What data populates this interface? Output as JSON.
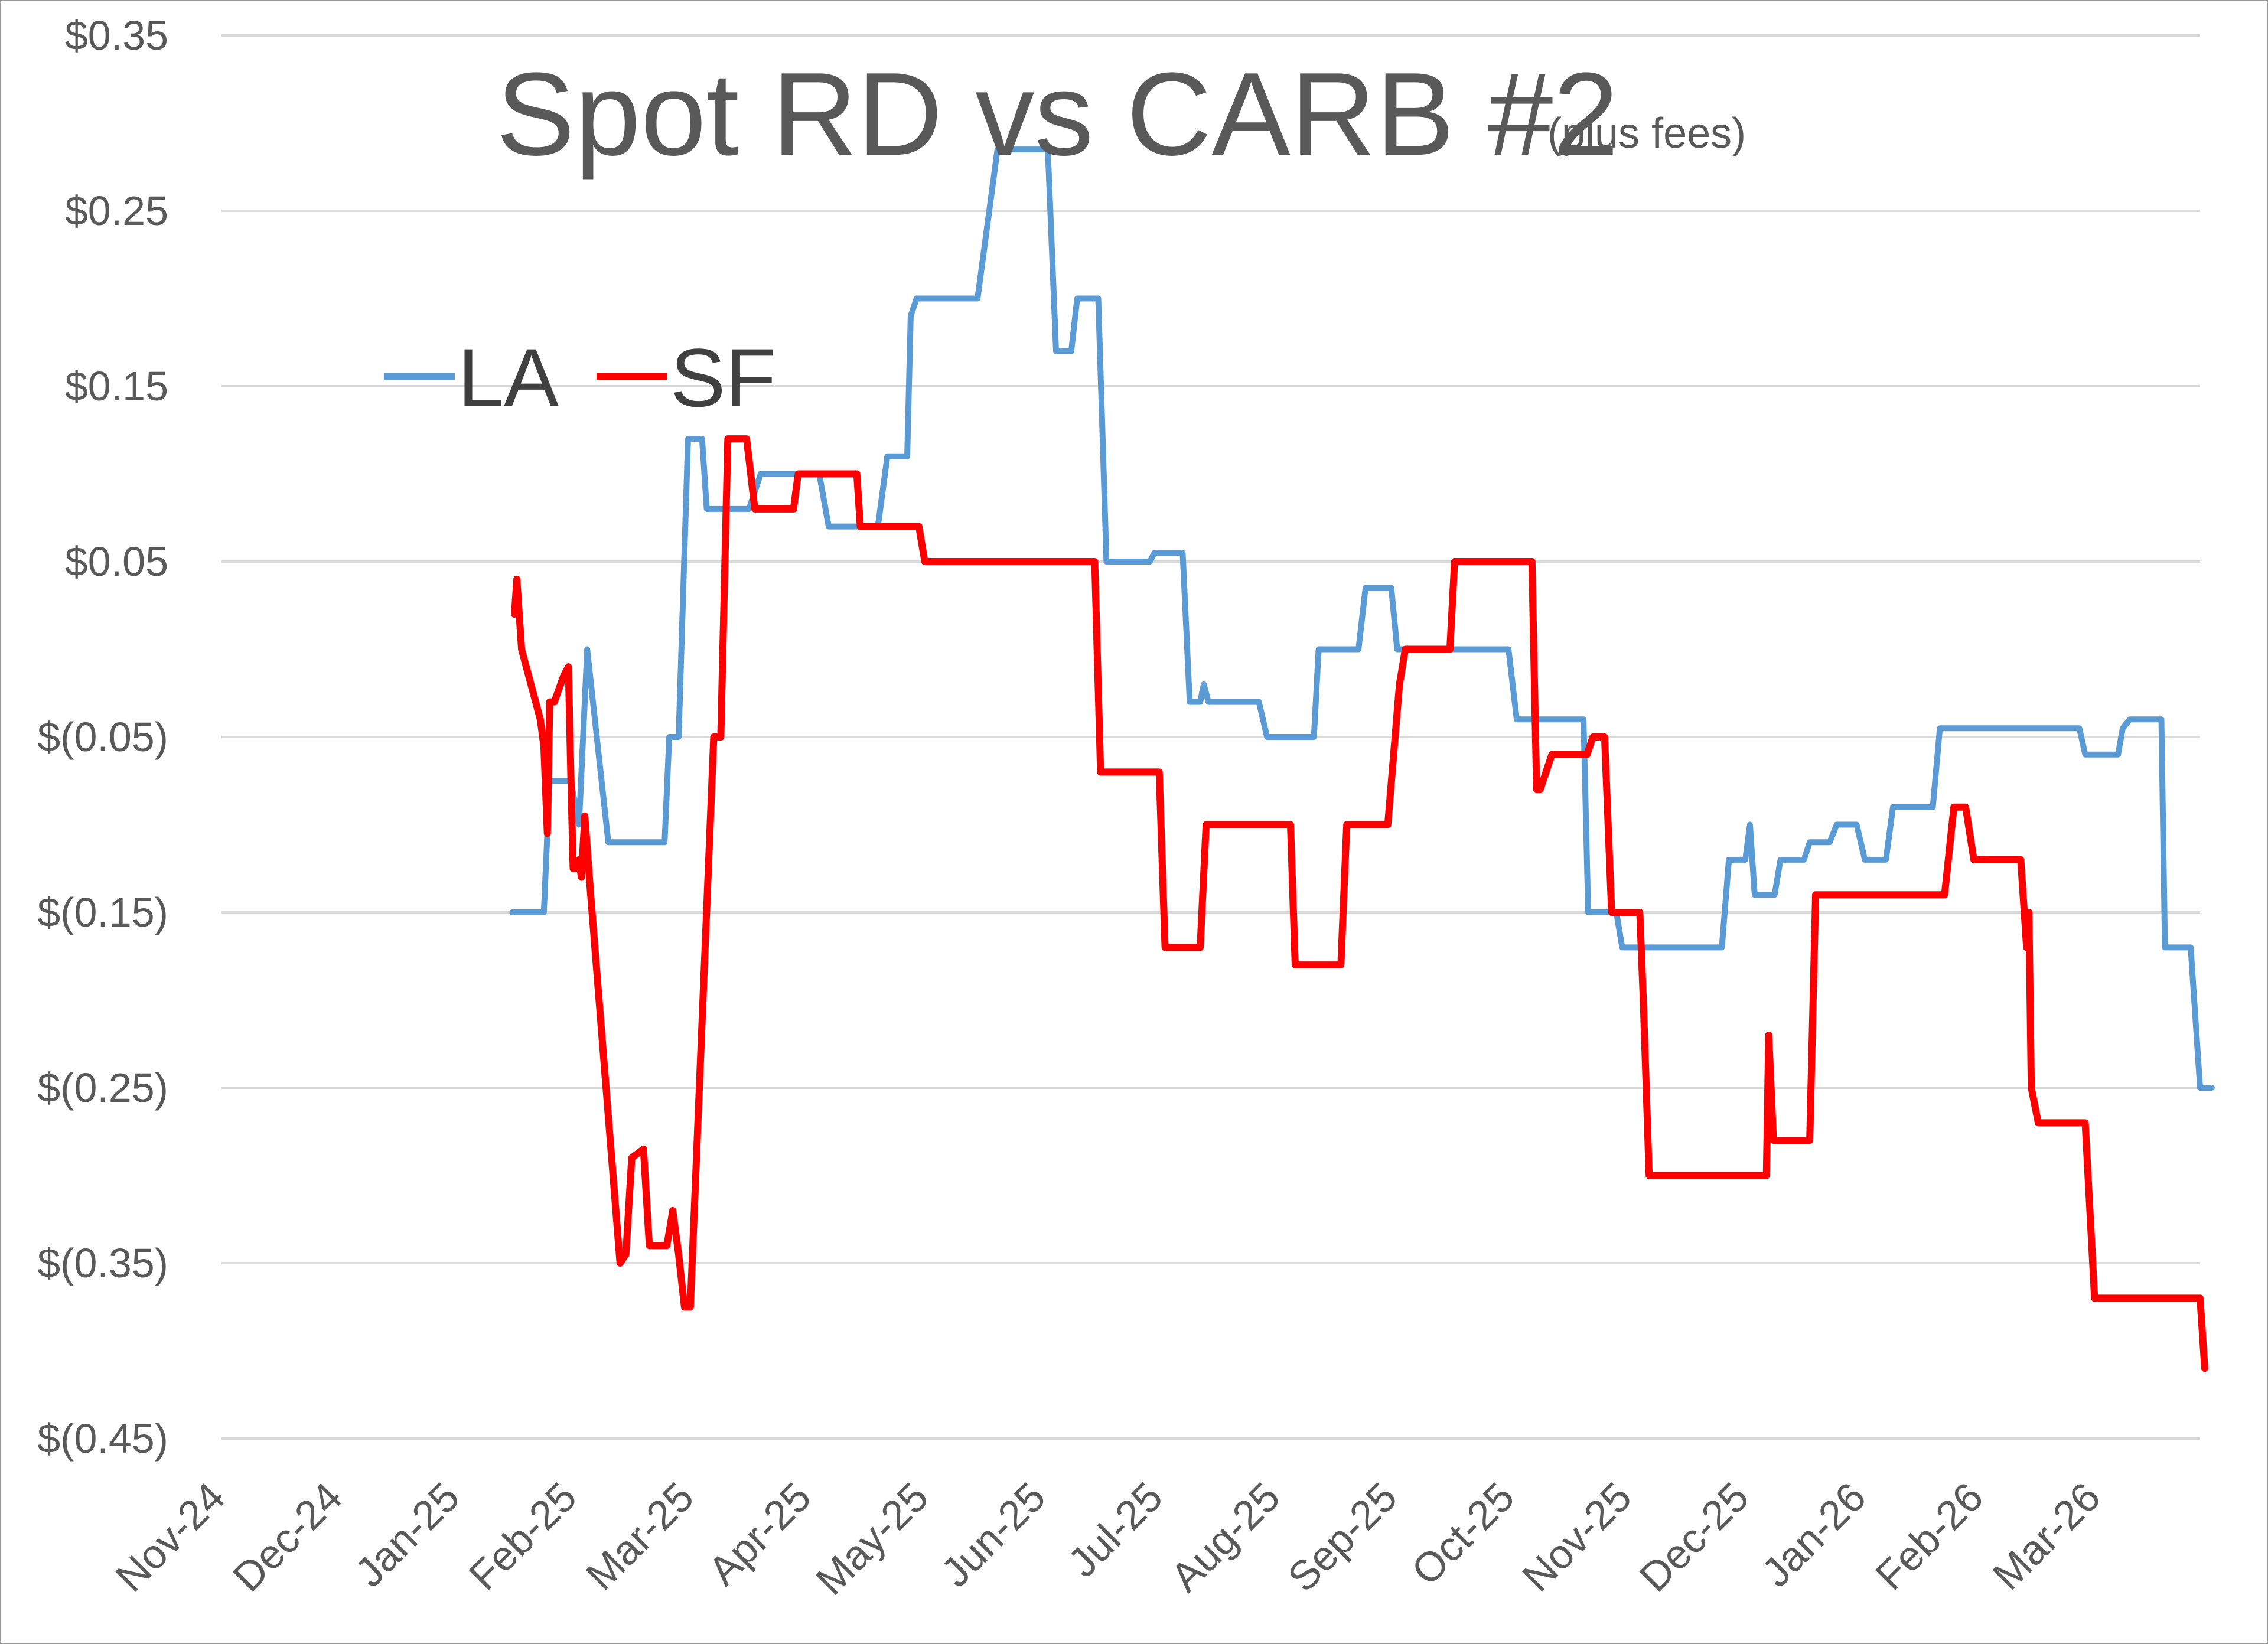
{
  "chart_data": {
    "type": "line",
    "title": "Spot RD vs CARB #2",
    "subtitle": "(plus fees)",
    "xlabel": "",
    "ylabel": "",
    "y_tick_labels": [
      "$0.35",
      "$0.25",
      "$0.15",
      "$0.05",
      "$(0.05)",
      "$(0.15)",
      "$(0.25)",
      "$(0.35)",
      "$(0.45)"
    ],
    "y_ticks": [
      0.35,
      0.25,
      0.15,
      0.05,
      -0.05,
      -0.15,
      -0.25,
      -0.35,
      -0.45
    ],
    "ylim": [
      -0.45,
      0.35
    ],
    "x_tick_labels": [
      "Nov-24",
      "Dec-24",
      "Jan-25",
      "Feb-25",
      "Mar-25",
      "Apr-25",
      "May-25",
      "Jun-25",
      "Jul-25",
      "Aug-25",
      "Sep-25",
      "Oct-25",
      "Nov-25",
      "Dec-25",
      "Jan-26",
      "Feb-26",
      "Mar-26"
    ],
    "x_ticks": [
      0,
      1,
      2,
      3,
      4,
      5,
      6,
      7,
      8,
      9,
      10,
      11,
      12,
      13,
      14,
      15,
      16
    ],
    "x_unit": "months since Nov-24",
    "xlim": [
      0,
      16.88
    ],
    "grid": true,
    "legend_position": "upper-left",
    "series": [
      {
        "name": "LA",
        "color": "#5b9bd5",
        "points": [
          [
            2.48,
            -0.15
          ],
          [
            2.75,
            -0.15
          ],
          [
            2.8,
            -0.075
          ],
          [
            2.98,
            -0.075
          ],
          [
            3.05,
            -0.1
          ],
          [
            3.12,
            0.0
          ],
          [
            3.3,
            -0.11
          ],
          [
            3.78,
            -0.11
          ],
          [
            3.82,
            -0.05
          ],
          [
            3.9,
            -0.05
          ],
          [
            3.98,
            0.12
          ],
          [
            4.1,
            0.12
          ],
          [
            4.14,
            0.08
          ],
          [
            4.5,
            0.08
          ],
          [
            4.6,
            0.1
          ],
          [
            5.1,
            0.1
          ],
          [
            5.18,
            0.07
          ],
          [
            5.32,
            0.07
          ],
          [
            5.42,
            0.07
          ],
          [
            5.6,
            0.07
          ],
          [
            5.68,
            0.11
          ],
          [
            5.85,
            0.11
          ],
          [
            5.88,
            0.19
          ],
          [
            5.93,
            0.2
          ],
          [
            6.45,
            0.2
          ],
          [
            6.62,
            0.285
          ],
          [
            7.05,
            0.285
          ],
          [
            7.12,
            0.17
          ],
          [
            7.25,
            0.17
          ],
          [
            7.3,
            0.2
          ],
          [
            7.48,
            0.2
          ],
          [
            7.55,
            0.05
          ],
          [
            7.92,
            0.05
          ],
          [
            7.96,
            0.055
          ],
          [
            8.2,
            0.055
          ],
          [
            8.26,
            -0.03
          ],
          [
            8.35,
            -0.03
          ],
          [
            8.38,
            -0.02
          ],
          [
            8.42,
            -0.03
          ],
          [
            8.85,
            -0.03
          ],
          [
            8.92,
            -0.05
          ],
          [
            9.32,
            -0.05
          ],
          [
            9.36,
            0.0
          ],
          [
            9.7,
            0.0
          ],
          [
            9.76,
            0.035
          ],
          [
            9.98,
            0.035
          ],
          [
            10.03,
            0.0
          ],
          [
            10.98,
            0.0
          ],
          [
            11.05,
            -0.04
          ],
          [
            11.62,
            -0.04
          ],
          [
            11.66,
            -0.15
          ],
          [
            11.9,
            -0.15
          ],
          [
            11.95,
            -0.17
          ],
          [
            12.8,
            -0.17
          ],
          [
            12.86,
            -0.12
          ],
          [
            13.0,
            -0.12
          ],
          [
            13.04,
            -0.1
          ],
          [
            13.08,
            -0.14
          ],
          [
            13.25,
            -0.14
          ],
          [
            13.3,
            -0.12
          ],
          [
            13.5,
            -0.12
          ],
          [
            13.55,
            -0.11
          ],
          [
            13.72,
            -0.11
          ],
          [
            13.78,
            -0.1
          ],
          [
            13.95,
            -0.1
          ],
          [
            14.02,
            -0.12
          ],
          [
            14.2,
            -0.12
          ],
          [
            14.26,
            -0.09
          ],
          [
            14.6,
            -0.09
          ],
          [
            14.66,
            -0.045
          ],
          [
            15.85,
            -0.045
          ],
          [
            15.9,
            -0.06
          ],
          [
            16.18,
            -0.06
          ],
          [
            16.22,
            -0.045
          ],
          [
            16.28,
            -0.04
          ],
          [
            16.55,
            -0.04
          ],
          [
            16.58,
            -0.17
          ],
          [
            16.8,
            -0.17
          ],
          [
            16.88,
            -0.25
          ],
          [
            16.98,
            -0.25
          ]
        ]
      },
      {
        "name": "SF",
        "color": "#ff0000",
        "points": [
          [
            2.5,
            0.02
          ],
          [
            2.52,
            0.04
          ],
          [
            2.56,
            0.0
          ],
          [
            2.68,
            -0.03
          ],
          [
            2.72,
            -0.04
          ],
          [
            2.75,
            -0.055
          ],
          [
            2.78,
            -0.105
          ],
          [
            2.8,
            -0.03
          ],
          [
            2.84,
            -0.03
          ],
          [
            2.92,
            -0.015
          ],
          [
            2.96,
            -0.01
          ],
          [
            2.98,
            -0.07
          ],
          [
            3.0,
            -0.125
          ],
          [
            3.03,
            -0.125
          ],
          [
            3.05,
            -0.12
          ],
          [
            3.07,
            -0.13
          ],
          [
            3.1,
            -0.095
          ],
          [
            3.15,
            -0.14
          ],
          [
            3.4,
            -0.35
          ],
          [
            3.45,
            -0.345
          ],
          [
            3.5,
            -0.29
          ],
          [
            3.6,
            -0.285
          ],
          [
            3.65,
            -0.34
          ],
          [
            3.8,
            -0.34
          ],
          [
            3.85,
            -0.32
          ],
          [
            3.9,
            -0.345
          ],
          [
            3.95,
            -0.375
          ],
          [
            4.0,
            -0.375
          ],
          [
            4.2,
            -0.05
          ],
          [
            4.26,
            -0.05
          ],
          [
            4.32,
            0.12
          ],
          [
            4.48,
            0.12
          ],
          [
            4.55,
            0.08
          ],
          [
            4.7,
            0.08
          ],
          [
            4.88,
            0.08
          ],
          [
            4.92,
            0.1
          ],
          [
            5.42,
            0.1
          ],
          [
            5.45,
            0.07
          ],
          [
            5.58,
            0.07
          ],
          [
            5.64,
            0.07
          ],
          [
            5.95,
            0.07
          ],
          [
            6.0,
            0.05
          ],
          [
            7.45,
            0.05
          ],
          [
            7.5,
            -0.07
          ],
          [
            8.0,
            -0.07
          ],
          [
            8.05,
            -0.17
          ],
          [
            8.35,
            -0.17
          ],
          [
            8.4,
            -0.1
          ],
          [
            9.12,
            -0.1
          ],
          [
            9.16,
            -0.18
          ],
          [
            9.55,
            -0.18
          ],
          [
            9.6,
            -0.1
          ],
          [
            9.95,
            -0.1
          ],
          [
            10.05,
            -0.02
          ],
          [
            10.1,
            0.0
          ],
          [
            10.48,
            0.0
          ],
          [
            10.52,
            0.05
          ],
          [
            11.18,
            0.05
          ],
          [
            11.22,
            -0.08
          ],
          [
            11.25,
            -0.08
          ],
          [
            11.35,
            -0.06
          ],
          [
            11.65,
            -0.06
          ],
          [
            11.7,
            -0.05
          ],
          [
            11.8,
            -0.05
          ],
          [
            11.86,
            -0.15
          ],
          [
            12.1,
            -0.15
          ],
          [
            12.13,
            -0.2
          ],
          [
            12.18,
            -0.3
          ],
          [
            13.18,
            -0.3
          ],
          [
            13.2,
            -0.22
          ],
          [
            13.24,
            -0.28
          ],
          [
            13.55,
            -0.28
          ],
          [
            13.6,
            -0.14
          ],
          [
            14.48,
            -0.14
          ],
          [
            14.55,
            -0.14
          ],
          [
            14.7,
            -0.14
          ],
          [
            14.78,
            -0.09
          ],
          [
            14.88,
            -0.09
          ],
          [
            14.95,
            -0.12
          ],
          [
            15.35,
            -0.12
          ],
          [
            15.4,
            -0.17
          ],
          [
            15.42,
            -0.15
          ],
          [
            15.44,
            -0.25
          ],
          [
            15.5,
            -0.27
          ],
          [
            15.9,
            -0.27
          ],
          [
            15.98,
            -0.37
          ],
          [
            16.88,
            -0.37
          ],
          [
            16.92,
            -0.41
          ]
        ]
      }
    ]
  }
}
